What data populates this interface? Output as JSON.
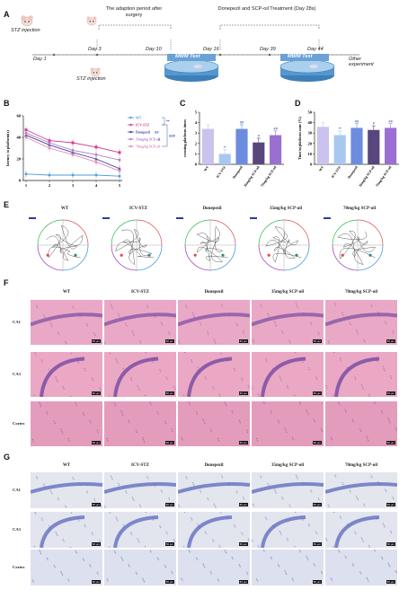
{
  "panels": {
    "A": "A",
    "B": "B",
    "C": "C",
    "D": "D",
    "E": "E",
    "F": "F",
    "G": "G"
  },
  "timeline": {
    "stz1": "STZ injection",
    "stz2": "STZ injection",
    "adaption": "The adaption period after surgery",
    "treatment": "Donepezil and SCP-oil Treatment (Day 28s)",
    "day1": "Day 1",
    "day3": "Day 3",
    "day10": "Day 10",
    "day16": "Day 16",
    "day39": "Day 39",
    "day44": "Day 44",
    "mwm1": "MWM Test",
    "mwm2": "MWM Test",
    "other": "Other experiment"
  },
  "colors": {
    "WT": "#4a9fd8",
    "ICV-STZ": "#d23c8c",
    "Donepezil": "#4a3f9e",
    "35mg": "#b07fbc",
    "70mg": "#e08ab7",
    "barWT": "#c9c3ee",
    "barSTZ": "#a8c8f0",
    "barDon": "#6c8ce0",
    "bar35": "#58467e",
    "bar70": "#9b6fd2"
  },
  "chart_data": [
    {
      "type": "line",
      "ylabel": "latency to platform(s)",
      "x": [
        1,
        2,
        3,
        4,
        5
      ],
      "xlim": [
        1,
        5
      ],
      "ylim": [
        0,
        60
      ],
      "yticks": [
        0,
        20,
        40,
        60
      ],
      "series": [
        {
          "name": "WT",
          "values": [
            6,
            5,
            5,
            5,
            4
          ]
        },
        {
          "name": "ICV-STZ",
          "values": [
            47,
            37,
            35,
            31,
            26
          ]
        },
        {
          "name": "Donepezil",
          "values": [
            42,
            33,
            26,
            20,
            11
          ]
        },
        {
          "name": "35mg/kg SCP-oil",
          "values": [
            44,
            35,
            28,
            24,
            19
          ]
        },
        {
          "name": "70mg/kg SCP-oil",
          "values": [
            40,
            30,
            24,
            17,
            9
          ]
        }
      ],
      "sig": [
        "**",
        "###",
        "##",
        "#"
      ]
    },
    {
      "type": "bar",
      "ylabel": "crossing platform times",
      "categories": [
        "WT",
        "ICV-STZ",
        "Donepezil",
        "35mg/kg SCP-oil",
        "70mg/kg SCP-oil"
      ],
      "values": [
        3.4,
        1.0,
        3.4,
        2.1,
        2.8
      ],
      "ylim": [
        0,
        5
      ],
      "yticks": [
        0,
        1,
        2,
        3,
        4,
        5
      ],
      "sig": [
        "",
        "**",
        "##",
        "#",
        "##"
      ]
    },
    {
      "type": "bar",
      "ylabel": "Time in platform zone (%)",
      "categories": [
        "WT",
        "ICV-STZ",
        "Donepezil",
        "35mg/kg SCP-oil",
        "70mg/kg SCP-oil"
      ],
      "values": [
        36,
        28,
        35,
        33,
        35
      ],
      "ylim": [
        0,
        50
      ],
      "yticks": [
        0,
        10,
        20,
        30,
        40,
        50
      ],
      "sig": [
        "",
        "**",
        "##",
        "#",
        "##"
      ]
    }
  ],
  "groups": [
    "WT",
    "ICV-STZ",
    "Donepezil",
    "35mg/kg SCP-oil",
    "70mg/kg SCP-oil"
  ],
  "rows": [
    "CA1",
    "CA3",
    "Cortex"
  ],
  "scalebar": "50 μm"
}
